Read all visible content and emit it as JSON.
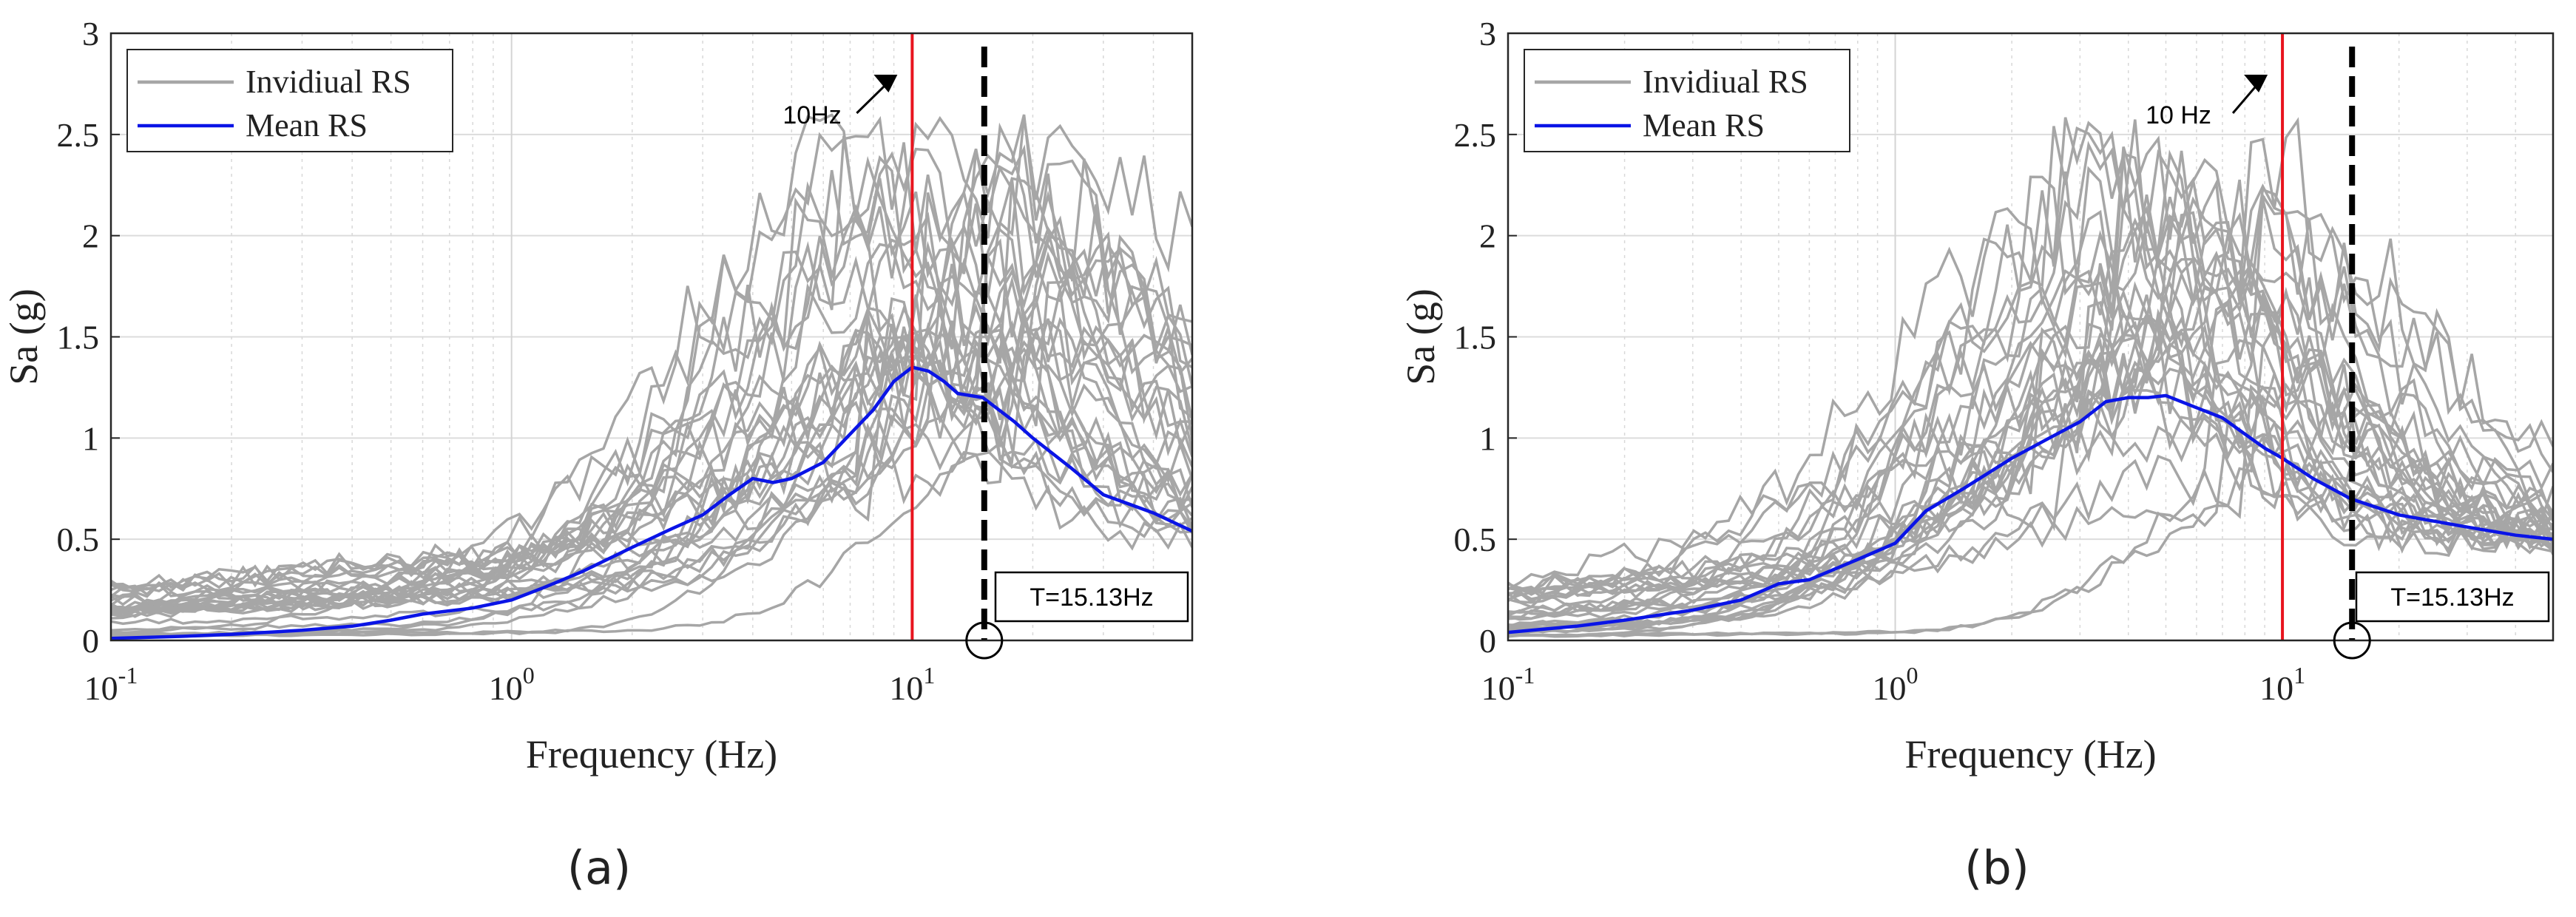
{
  "chart_data": [
    {
      "type": "line",
      "caption": "(a)",
      "xlabel": "Frequency (Hz)",
      "ylabel": "Sa (g)",
      "xscale": "log",
      "xlim": [
        0.1,
        50
      ],
      "ylim": [
        0,
        3
      ],
      "yticks": [
        0,
        0.5,
        1,
        1.5,
        2,
        2.5,
        3
      ],
      "ytick_labels": [
        "0",
        "0.5",
        "1",
        "1.5",
        "2",
        "2.5",
        "3"
      ],
      "xticks": [
        0.1,
        1,
        10
      ],
      "xtick_labels": [
        {
          "base": "10",
          "exp": "-1"
        },
        {
          "base": "10",
          "exp": "0"
        },
        {
          "base": "10",
          "exp": "1"
        }
      ],
      "grid": true,
      "legend_position": "top-left",
      "legend": [
        "Invidiual RS",
        "Mean RS"
      ],
      "colors": {
        "individual": "#a6a6a6",
        "mean": "#0a14e6",
        "ref_line": "#e8141e",
        "marker_line": "#000000"
      },
      "ref_line": {
        "x": 10,
        "label": "10Hz"
      },
      "marker_line": {
        "x": 15.13,
        "label": "T=15.13Hz"
      },
      "mean_series": {
        "name": "Mean RS",
        "x": [
          0.1,
          0.15,
          0.2,
          0.3,
          0.4,
          0.5,
          0.6,
          0.8,
          1.0,
          1.2,
          1.5,
          2.0,
          2.5,
          3.0,
          3.5,
          4.0,
          4.5,
          5.0,
          6.0,
          7.0,
          8.0,
          9.0,
          10.0,
          11.0,
          12.0,
          13.0,
          15.0,
          18.0,
          20.0,
          25.0,
          30.0,
          40.0,
          50.0
        ],
        "y": [
          0.01,
          0.02,
          0.03,
          0.05,
          0.07,
          0.1,
          0.13,
          0.16,
          0.2,
          0.26,
          0.34,
          0.46,
          0.55,
          0.62,
          0.72,
          0.8,
          0.78,
          0.8,
          0.88,
          1.02,
          1.14,
          1.28,
          1.35,
          1.33,
          1.28,
          1.22,
          1.2,
          1.08,
          1.0,
          0.85,
          0.72,
          0.63,
          0.54
        ]
      },
      "individual_series": {
        "name": "Invidiual RS",
        "count": 30,
        "peak_freq": 9.5,
        "peak_amp": 1.35,
        "tail_level": 0.55,
        "seed": 11
      }
    },
    {
      "type": "line",
      "caption": "(b)",
      "xlabel": "Frequency (Hz)",
      "ylabel": "Sa (g)",
      "xscale": "log",
      "xlim": [
        0.1,
        50
      ],
      "ylim": [
        0,
        3
      ],
      "yticks": [
        0,
        0.5,
        1,
        1.5,
        2,
        2.5,
        3
      ],
      "ytick_labels": [
        "0",
        "0.5",
        "1",
        "1.5",
        "2",
        "2.5",
        "3"
      ],
      "xticks": [
        0.1,
        1,
        10
      ],
      "xtick_labels": [
        {
          "base": "10",
          "exp": "-1"
        },
        {
          "base": "10",
          "exp": "0"
        },
        {
          "base": "10",
          "exp": "1"
        }
      ],
      "grid": true,
      "legend_position": "top-left",
      "legend": [
        "Invidiual RS",
        "Mean RS"
      ],
      "colors": {
        "individual": "#a6a6a6",
        "mean": "#0a14e6",
        "ref_line": "#e8141e",
        "marker_line": "#000000"
      },
      "ref_line": {
        "x": 10,
        "label": "10 Hz"
      },
      "marker_line": {
        "x": 15.13,
        "label": "T=15.13Hz"
      },
      "mean_series": {
        "name": "Mean RS",
        "x": [
          0.1,
          0.15,
          0.2,
          0.3,
          0.4,
          0.5,
          0.6,
          0.8,
          1.0,
          1.2,
          1.5,
          2.0,
          2.5,
          3.0,
          3.5,
          4.0,
          4.5,
          5.0,
          6.0,
          7.0,
          8.0,
          9.0,
          10.0,
          12.0,
          15.0,
          20.0,
          30.0,
          40.0,
          50.0
        ],
        "y": [
          0.04,
          0.07,
          0.1,
          0.15,
          0.2,
          0.28,
          0.3,
          0.4,
          0.48,
          0.64,
          0.75,
          0.9,
          1.0,
          1.08,
          1.18,
          1.2,
          1.2,
          1.21,
          1.15,
          1.1,
          1.02,
          0.95,
          0.9,
          0.8,
          0.7,
          0.62,
          0.56,
          0.52,
          0.5
        ]
      },
      "individual_series": {
        "name": "Invidiual RS",
        "count": 30,
        "peak_freq": 4.0,
        "peak_amp": 1.22,
        "tail_level": 0.52,
        "seed": 29
      }
    }
  ]
}
